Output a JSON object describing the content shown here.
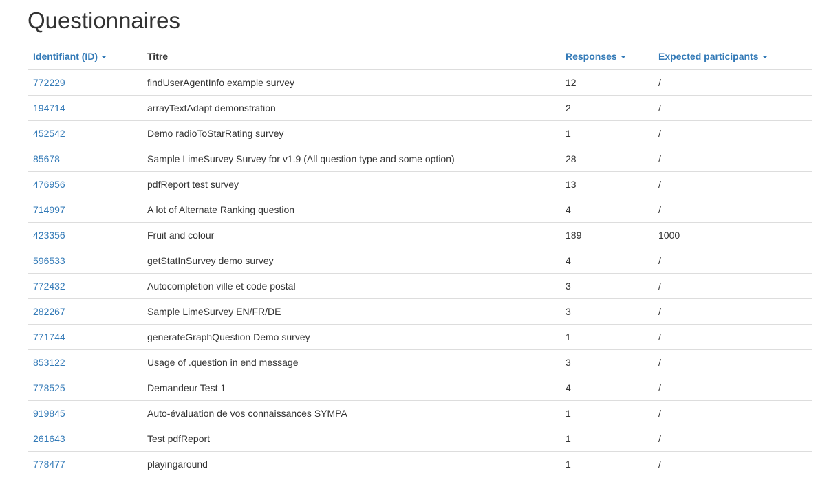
{
  "page": {
    "title": "Questionnaires"
  },
  "colors": {
    "link": "#337ab7",
    "text": "#333333",
    "border": "#dddddd",
    "background": "#ffffff"
  },
  "table": {
    "headers": [
      {
        "label": "Identifiant (ID)",
        "sortable": true,
        "icon": "caret-down-icon"
      },
      {
        "label": "Titre",
        "sortable": false
      },
      {
        "label": "Responses",
        "sortable": true,
        "icon": "caret-down-icon"
      },
      {
        "label": "Expected participants",
        "sortable": true,
        "icon": "caret-down-icon"
      }
    ],
    "rows": [
      {
        "id": "772229",
        "title": "findUserAgentInfo example survey",
        "responses": "12",
        "expected": "/"
      },
      {
        "id": "194714",
        "title": "arrayTextAdapt demonstration",
        "responses": "2",
        "expected": "/"
      },
      {
        "id": "452542",
        "title": "Demo radioToStarRating survey",
        "responses": "1",
        "expected": "/"
      },
      {
        "id": "85678",
        "title": "Sample LimeSurvey Survey for v1.9 (All question type and some option)",
        "responses": "28",
        "expected": "/"
      },
      {
        "id": "476956",
        "title": "pdfReport test survey",
        "responses": "13",
        "expected": "/"
      },
      {
        "id": "714997",
        "title": "A lot of Alternate Ranking question",
        "responses": "4",
        "expected": "/"
      },
      {
        "id": "423356",
        "title": "Fruit and colour",
        "responses": "189",
        "expected": "1000"
      },
      {
        "id": "596533",
        "title": "getStatInSurvey demo survey",
        "responses": "4",
        "expected": "/"
      },
      {
        "id": "772432",
        "title": "Autocompletion ville et code postal",
        "responses": "3",
        "expected": "/"
      },
      {
        "id": "282267",
        "title": "Sample LimeSurvey EN/FR/DE",
        "responses": "3",
        "expected": "/"
      },
      {
        "id": "771744",
        "title": "generateGraphQuestion Demo survey",
        "responses": "1",
        "expected": "/"
      },
      {
        "id": "853122",
        "title": "Usage of .question in end message",
        "responses": "3",
        "expected": "/"
      },
      {
        "id": "778525",
        "title": "Demandeur Test 1",
        "responses": "4",
        "expected": "/"
      },
      {
        "id": "919845",
        "title": "Auto-évaluation de vos connaissances SYMPA",
        "responses": "1",
        "expected": "/"
      },
      {
        "id": "261643",
        "title": "Test pdfReport",
        "responses": "1",
        "expected": "/"
      },
      {
        "id": "778477",
        "title": "playingaround",
        "responses": "1",
        "expected": "/"
      }
    ]
  }
}
